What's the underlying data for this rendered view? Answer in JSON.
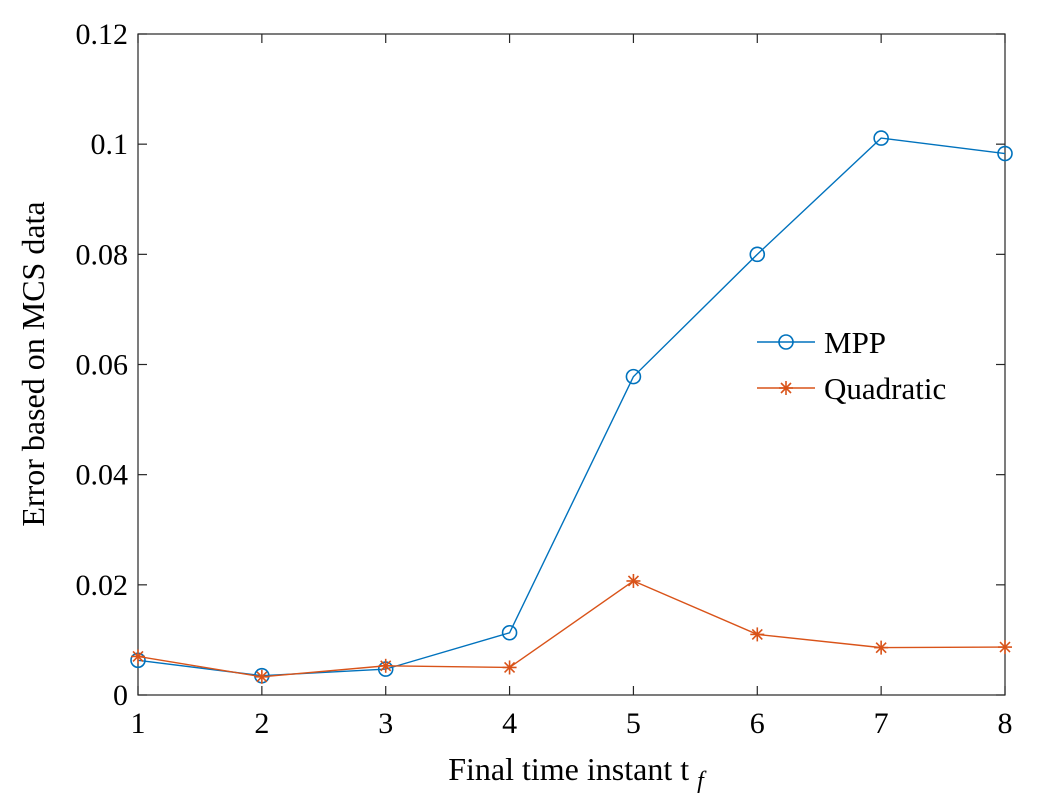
{
  "chart_data": {
    "type": "line",
    "title": "",
    "xlabel": "Final time instant t",
    "xlabel_subscript": "f",
    "ylabel": "Error based on MCS data",
    "xlim": [
      1,
      8
    ],
    "ylim": [
      0,
      0.12
    ],
    "xticks": [
      1,
      2,
      3,
      4,
      5,
      6,
      7,
      8
    ],
    "yticks": [
      0,
      0.02,
      0.04,
      0.06,
      0.08,
      0.1,
      0.12
    ],
    "ytick_labels": [
      "0",
      "0.02",
      "0.04",
      "0.06",
      "0.08",
      "0.1",
      "0.12"
    ],
    "grid": false,
    "legend_position": "center-right",
    "x": [
      1,
      2,
      3,
      4,
      5,
      6,
      7,
      8
    ],
    "series": [
      {
        "name": "MPP",
        "marker": "circle",
        "color": "#0072BD",
        "values": [
          0.0063,
          0.0035,
          0.0047,
          0.0113,
          0.0578,
          0.08,
          0.1011,
          0.0983
        ]
      },
      {
        "name": "Quadratic",
        "marker": "asterisk",
        "color": "#D95319",
        "values": [
          0.007,
          0.0033,
          0.0053,
          0.005,
          0.0207,
          0.011,
          0.0086,
          0.0087
        ]
      }
    ]
  }
}
